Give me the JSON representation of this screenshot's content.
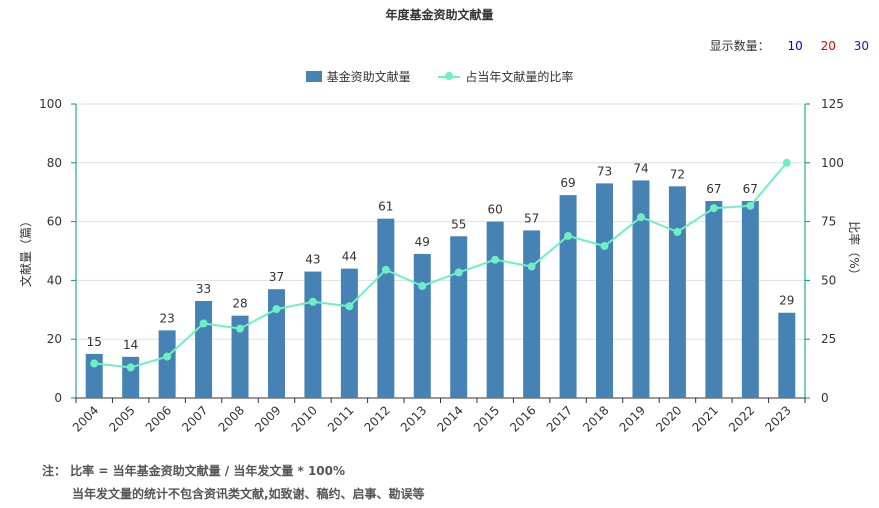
{
  "header": {
    "title": "年度基金资助文献量"
  },
  "display_count": {
    "label": "显示数量：",
    "options": [
      "10",
      "20",
      "30"
    ]
  },
  "legend": {
    "bar_label": "基金资助文献量",
    "line_label": "占当年文献量的比率"
  },
  "note": {
    "line1": "注： 比率 = 当年基金资助文献量 / 当年发文量 * 100%",
    "line2": "当年发文量的统计不包含资讯类文献,如致谢、稿约、启事、勘误等"
  },
  "chart_data": {
    "type": "bar+line",
    "categories": [
      "2004",
      "2005",
      "2006",
      "2007",
      "2008",
      "2009",
      "2010",
      "2011",
      "2012",
      "2013",
      "2014",
      "2015",
      "2016",
      "2017",
      "2018",
      "2019",
      "2020",
      "2021",
      "2022",
      "2023"
    ],
    "series": [
      {
        "name": "基金资助文献量",
        "type": "bar",
        "axis": "left",
        "values": [
          15,
          14,
          23,
          33,
          28,
          37,
          43,
          44,
          61,
          49,
          55,
          60,
          57,
          69,
          73,
          74,
          72,
          67,
          67,
          29
        ]
      },
      {
        "name": "占当年文献量的比率",
        "type": "line",
        "axis": "right",
        "values": [
          14.7,
          13,
          17.6,
          31.7,
          29.5,
          37.8,
          40.9,
          39,
          54.5,
          47.6,
          53.4,
          58.8,
          55.9,
          68.9,
          64.6,
          76.9,
          70.6,
          80.7,
          81.7,
          100
        ]
      }
    ],
    "ylabel_left": "文献量（篇）",
    "ylabel_right": "比率（%）",
    "ylim_left": [
      0,
      100
    ],
    "ylim_right": [
      0,
      125
    ],
    "yticks_left": [
      "0",
      "20",
      "40",
      "60",
      "80",
      "100"
    ],
    "yticks_right": [
      "0",
      "25",
      "50",
      "75",
      "100",
      "125"
    ],
    "grid": true,
    "colors": {
      "bar": "#4682b4",
      "line": "#6ff0c3",
      "axis": "#009688",
      "grid": "#e0e0e0"
    }
  }
}
